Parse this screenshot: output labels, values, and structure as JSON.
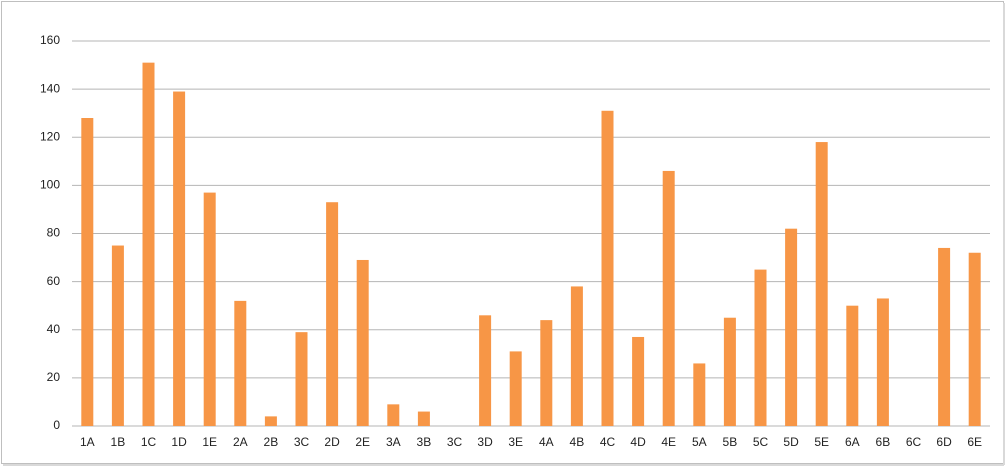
{
  "chart_data": {
    "type": "bar",
    "categories": [
      "1A",
      "1B",
      "1C",
      "1D",
      "1E",
      "2A",
      "2B",
      "3C",
      "2D",
      "2E",
      "3A",
      "3B",
      "3C",
      "3D",
      "3E",
      "4A",
      "4B",
      "4C",
      "4D",
      "4E",
      "5A",
      "5B",
      "5C",
      "5D",
      "5E",
      "6A",
      "6B",
      "6C",
      "6D",
      "6E"
    ],
    "values": [
      128,
      75,
      151,
      139,
      97,
      52,
      4,
      39,
      93,
      69,
      9,
      6,
      0,
      46,
      31,
      44,
      58,
      131,
      37,
      106,
      26,
      45,
      65,
      82,
      118,
      50,
      53,
      0,
      74,
      72
    ],
    "color": "#f79646",
    "ylim": [
      0,
      160
    ],
    "yticks": [
      0,
      20,
      40,
      60,
      80,
      100,
      120,
      140,
      160
    ],
    "grid": true
  }
}
